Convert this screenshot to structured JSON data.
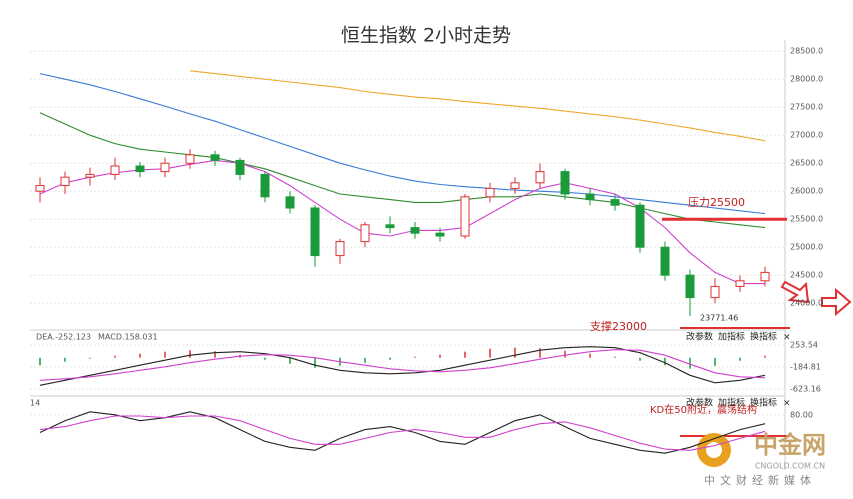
{
  "chart_data": {
    "type": "candlestick",
    "title": "恒生指数 2小时走势",
    "ylim": [
      23700,
      28700
    ],
    "yticks": [
      {
        "value": 24000,
        "label": "24000.0"
      },
      {
        "value": 24500,
        "label": "24500.0"
      },
      {
        "value": 25000,
        "label": "25000.0"
      },
      {
        "value": 25500,
        "label": "25500.0"
      },
      {
        "value": 26000,
        "label": "26000.0"
      },
      {
        "value": 26500,
        "label": "26500.0"
      },
      {
        "value": 27000,
        "label": "27000.0"
      },
      {
        "value": 27500,
        "label": "27500.0"
      },
      {
        "value": 28000,
        "label": "28000.0"
      },
      {
        "value": 28500,
        "label": "28500.0"
      }
    ],
    "up_color": "#e03030",
    "down_color": "#1a9a3a",
    "candles": {
      "open": [
        26000,
        26100,
        26250,
        26300,
        26450,
        26350,
        26500,
        26650,
        26550,
        26300,
        25900,
        25700,
        24850,
        25100,
        25400,
        25350,
        25250,
        25200,
        25900,
        26050,
        26150,
        26350,
        25950,
        25850,
        25750,
        25000,
        24500,
        24100,
        24300,
        24400
      ],
      "high": [
        26250,
        26350,
        26420,
        26600,
        26520,
        26600,
        26750,
        26720,
        26600,
        26350,
        26000,
        25750,
        25150,
        25450,
        25550,
        25450,
        25350,
        25950,
        26150,
        26250,
        26500,
        26400,
        26050,
        25950,
        25800,
        25100,
        24600,
        24450,
        24500,
        24650
      ],
      "low": [
        25800,
        25950,
        26100,
        26200,
        26250,
        26250,
        26400,
        26450,
        26200,
        25800,
        25600,
        24650,
        24700,
        25000,
        25250,
        25150,
        25100,
        25150,
        25800,
        25950,
        26050,
        25850,
        25750,
        25650,
        24900,
        24400,
        23771.46,
        24000,
        24200,
        24300
      ],
      "close": [
        26100,
        26250,
        26300,
        26450,
        26350,
        26500,
        26650,
        26550,
        26300,
        25900,
        25700,
        24850,
        25100,
        25400,
        25350,
        25250,
        25200,
        25900,
        26050,
        26150,
        26350,
        25950,
        25850,
        25750,
        25000,
        24500,
        24100,
        24300,
        24400,
        24550
      ]
    },
    "series": [
      {
        "color": "#3a7bd5",
        "values": [
          28100,
          28000,
          27900,
          27780,
          27650,
          27520,
          27380,
          27250,
          27100,
          26950,
          26800,
          26650,
          26500,
          26380,
          26270,
          26180,
          26120,
          26080,
          26050,
          26020,
          26000,
          25980,
          25950,
          25900,
          25850,
          25800,
          25750,
          25700,
          25650,
          25600
        ]
      },
      {
        "color": "#f0a830",
        "values": [
          null,
          null,
          null,
          null,
          null,
          null,
          28150,
          28100,
          28050,
          28000,
          27950,
          27900,
          27850,
          27780,
          27730,
          27680,
          27650,
          27600,
          27560,
          27520,
          27480,
          27430,
          27380,
          27330,
          27270,
          27200,
          27130,
          27050,
          26980,
          26900
        ]
      },
      {
        "color": "#2e8b2e",
        "values": [
          27400,
          27200,
          27000,
          26850,
          26750,
          26700,
          26650,
          26600,
          26500,
          26400,
          26250,
          26100,
          25950,
          25900,
          25850,
          25800,
          25800,
          25850,
          25900,
          25900,
          25950,
          25900,
          25850,
          25800,
          25700,
          25600,
          25500,
          25450,
          25400,
          25350
        ]
      },
      {
        "color": "#d040d0",
        "values": [
          25950,
          26150,
          26250,
          26330,
          26380,
          26400,
          26480,
          26550,
          26500,
          26350,
          26100,
          25800,
          25500,
          25250,
          25200,
          25300,
          25300,
          25350,
          25600,
          25850,
          26050,
          26150,
          26050,
          25950,
          25700,
          25350,
          24900,
          24550,
          24350,
          24350
        ]
      }
    ],
    "resistance": {
      "label": "压力25500",
      "value": 25500
    },
    "support": {
      "label": "支撑23000"
    },
    "macd": {
      "dea_label": "DEA.-252.123",
      "macd_label": "MACD.158.031",
      "ylim": [
        -743,
        393
      ],
      "yticks": [
        253.54,
        -184.81,
        -623.16
      ],
      "hist": [
        -150,
        -80,
        -20,
        40,
        80,
        120,
        150,
        130,
        60,
        -40,
        -120,
        -200,
        -160,
        -100,
        -40,
        20,
        60,
        120,
        180,
        200,
        190,
        140,
        80,
        20,
        -60,
        -150,
        -220,
        -160,
        -60,
        40
      ],
      "dif": [
        -550,
        -450,
        -350,
        -250,
        -150,
        -50,
        50,
        100,
        120,
        80,
        0,
        -150,
        -250,
        -300,
        -320,
        -300,
        -250,
        -150,
        -50,
        50,
        150,
        200,
        220,
        200,
        100,
        -100,
        -350,
        -500,
        -450,
        -350
      ],
      "dea": [
        -450,
        -420,
        -380,
        -320,
        -250,
        -180,
        -100,
        -30,
        30,
        60,
        50,
        0,
        -80,
        -150,
        -220,
        -260,
        -280,
        -250,
        -200,
        -120,
        -30,
        50,
        120,
        160,
        150,
        50,
        -130,
        -300,
        -380,
        -400
      ]
    },
    "kd": {
      "label": "14",
      "note": "KD在50附近，震荡结构",
      "ylim": [
        -10,
        105
      ],
      "yticks": [
        {
          "value": 80,
          "label": "80.00"
        }
      ],
      "k": [
        50,
        70,
        85,
        80,
        70,
        75,
        85,
        75,
        55,
        35,
        25,
        20,
        40,
        55,
        60,
        50,
        35,
        30,
        50,
        70,
        80,
        60,
        40,
        30,
        20,
        15,
        25,
        40,
        55,
        65
      ],
      "d": [
        55,
        60,
        70,
        78,
        78,
        75,
        78,
        78,
        70,
        55,
        40,
        30,
        30,
        40,
        50,
        55,
        50,
        42,
        42,
        55,
        65,
        68,
        58,
        45,
        32,
        22,
        20,
        28,
        40,
        52
      ]
    },
    "buttons": [
      "改参数",
      "加指标",
      "换指标"
    ],
    "close_button": "×",
    "logo": {
      "name": "中金网",
      "url": "CNGOLD.COM.CN",
      "tagline": "中文财经新媒体"
    }
  }
}
